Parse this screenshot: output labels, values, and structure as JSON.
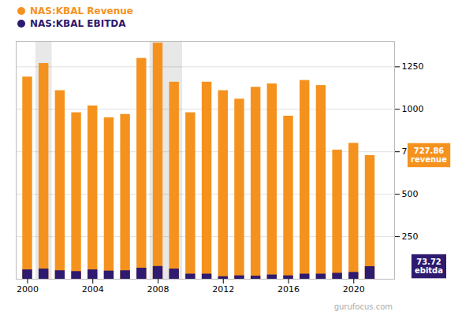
{
  "chart_data": {
    "type": "bar",
    "x": [
      2000,
      2001,
      2002,
      2003,
      2004,
      2005,
      2006,
      2007,
      2008,
      2009,
      2010,
      2011,
      2012,
      2013,
      2014,
      2015,
      2016,
      2017,
      2018,
      2019,
      2020,
      2021
    ],
    "series": [
      {
        "name": "NAS:KBAL Revenue",
        "color": "#F5921E",
        "values": [
          1190,
          1270,
          1110,
          980,
          1020,
          950,
          970,
          1300,
          1390,
          1160,
          980,
          1160,
          1110,
          1060,
          1130,
          1150,
          960,
          1170,
          1140,
          760,
          800,
          728
        ]
      },
      {
        "name": "NAS:KBAL EBITDA",
        "color": "#2E1A6E",
        "values": [
          55,
          60,
          50,
          45,
          55,
          48,
          50,
          65,
          75,
          60,
          30,
          30,
          15,
          20,
          18,
          25,
          20,
          30,
          30,
          35,
          40,
          74
        ]
      }
    ],
    "stacked": false,
    "xlim": [
      1999.3,
      2022.5
    ],
    "xticks": [
      2000,
      2004,
      2008,
      2012,
      2016,
      2020
    ],
    "ylim": [
      0,
      1400
    ],
    "yticks": [
      250,
      500,
      750,
      1000,
      1250
    ],
    "grid": true,
    "legend": "upper left",
    "bands": [
      {
        "x1": 2000.5,
        "x2": 2001.5
      },
      {
        "x1": 2007.5,
        "x2": 2009.5
      }
    ],
    "band_color": "#e8e8e8",
    "annotations": [
      {
        "text": "727.86\nrevenue",
        "y": 727.86,
        "color": "#F5921E"
      },
      {
        "text": "73.72\nebitda",
        "y": 73.72,
        "color": "#2E1A6E"
      },
      {
        "text": "gurufocus.com"
      }
    ]
  }
}
